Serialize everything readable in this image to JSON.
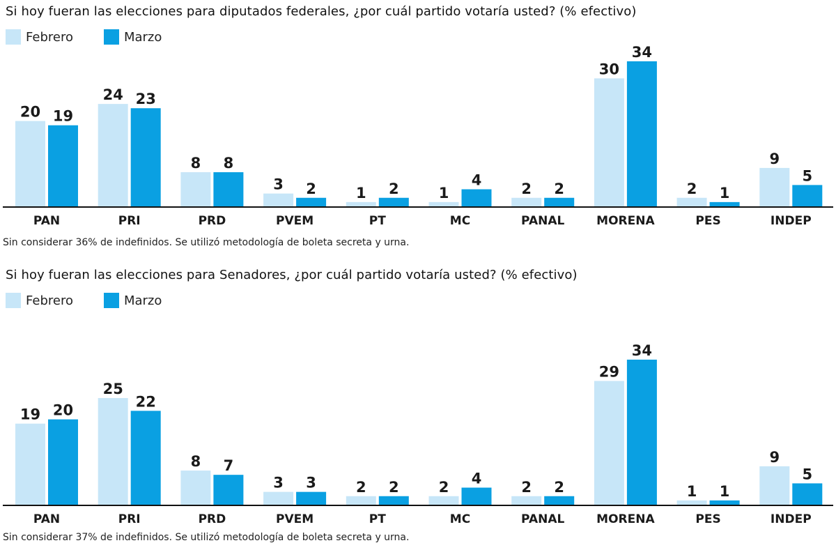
{
  "colors": {
    "febrero": "#c7e6f8",
    "marzo": "#0aa0e2",
    "axis": "#111111"
  },
  "chart_data": [
    {
      "type": "bar",
      "title": "Si hoy fueran las elecciones para diputados federales, ¿por cuál partido votaría usted? (% efectivo)",
      "legend": [
        "Febrero",
        "Marzo"
      ],
      "categories": [
        "PAN",
        "PRI",
        "PRD",
        "PVEM",
        "PT",
        "MC",
        "PANAL",
        "MORENA",
        "PES",
        "INDEP"
      ],
      "series": [
        {
          "name": "Febrero",
          "values": [
            20,
            24,
            8,
            3,
            1,
            1,
            2,
            30,
            2,
            9
          ]
        },
        {
          "name": "Marzo",
          "values": [
            19,
            23,
            8,
            2,
            2,
            4,
            2,
            34,
            1,
            5
          ]
        }
      ],
      "ylim": [
        0,
        34
      ],
      "note": "Sin considerar 36%  de indefinidos. Se utilizó metodología de boleta secreta y urna."
    },
    {
      "type": "bar",
      "title": "Si hoy fueran las elecciones para Senadores, ¿por cuál partido votaría usted? (% efectivo)",
      "legend": [
        "Febrero",
        "Marzo"
      ],
      "categories": [
        "PAN",
        "PRI",
        "PRD",
        "PVEM",
        "PT",
        "MC",
        "PANAL",
        "MORENA",
        "PES",
        "INDEP"
      ],
      "series": [
        {
          "name": "Febrero",
          "values": [
            19,
            25,
            8,
            3,
            2,
            2,
            2,
            29,
            1,
            9
          ]
        },
        {
          "name": "Marzo",
          "values": [
            20,
            22,
            7,
            3,
            2,
            4,
            2,
            34,
            1,
            5
          ]
        }
      ],
      "ylim": [
        0,
        34
      ],
      "note": "Sin considerar 37%  de indefinidos. Se utilizó metodología de boleta secreta y urna."
    }
  ]
}
